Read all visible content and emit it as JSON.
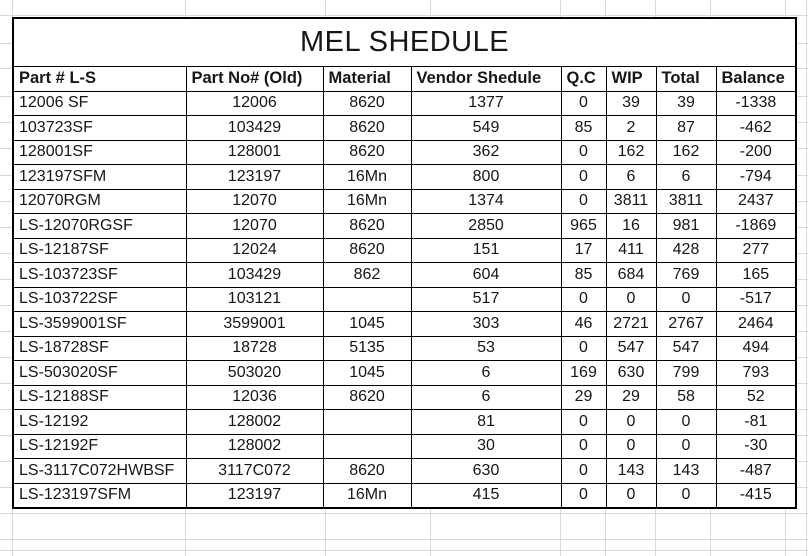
{
  "title": "MEL SHEDULE",
  "table": {
    "columns": [
      "Part # L-S",
      "Part No# (Old)",
      "Material",
      "Vendor Shedule",
      "Q.C",
      "WIP",
      "Total",
      "Balance"
    ],
    "rows": [
      [
        "12006 SF",
        "12006",
        "8620",
        "1377",
        "0",
        "39",
        "39",
        "-1338"
      ],
      [
        "103723SF",
        "103429",
        "8620",
        "549",
        "85",
        "2",
        "87",
        "-462"
      ],
      [
        "128001SF",
        "128001",
        "8620",
        "362",
        "0",
        "162",
        "162",
        "-200"
      ],
      [
        "123197SFM",
        "123197",
        "16Mn",
        "800",
        "0",
        "6",
        "6",
        "-794"
      ],
      [
        "12070RGM",
        "12070",
        "16Mn",
        "1374",
        "0",
        "3811",
        "3811",
        "2437"
      ],
      [
        "LS-12070RGSF",
        "12070",
        "8620",
        "2850",
        "965",
        "16",
        "981",
        "-1869"
      ],
      [
        "LS-12187SF",
        "12024",
        "8620",
        "151",
        "17",
        "411",
        "428",
        "277"
      ],
      [
        "LS-103723SF",
        "103429",
        "862",
        "604",
        "85",
        "684",
        "769",
        "165"
      ],
      [
        "LS-103722SF",
        "103121",
        "",
        "517",
        "0",
        "0",
        "0",
        "-517"
      ],
      [
        "LS-3599001SF",
        "3599001",
        "1045",
        "303",
        "46",
        "2721",
        "2767",
        "2464"
      ],
      [
        "LS-18728SF",
        "18728",
        "5135",
        "53",
        "0",
        "547",
        "547",
        "494"
      ],
      [
        "LS-503020SF",
        "503020",
        "1045",
        "6",
        "169",
        "630",
        "799",
        "793"
      ],
      [
        "LS-12188SF",
        "12036",
        "8620",
        "6",
        "29",
        "29",
        "58",
        "52"
      ],
      [
        "LS-12192",
        "128002",
        "",
        "81",
        "0",
        "0",
        "0",
        "-81"
      ],
      [
        "LS-12192F",
        "128002",
        "",
        "30",
        "0",
        "0",
        "0",
        "-30"
      ],
      [
        "LS-3117C072HWBSF",
        "3117C072",
        "8620",
        "630",
        "0",
        "143",
        "143",
        "-487"
      ],
      [
        "LS-123197SFM",
        "123197",
        "16Mn",
        "415",
        "0",
        "0",
        "0",
        "-415"
      ]
    ]
  },
  "colors": {
    "table_border": "#000000",
    "gridline": "#d9d9d9",
    "text": "#161616",
    "background": "#ffffff"
  }
}
